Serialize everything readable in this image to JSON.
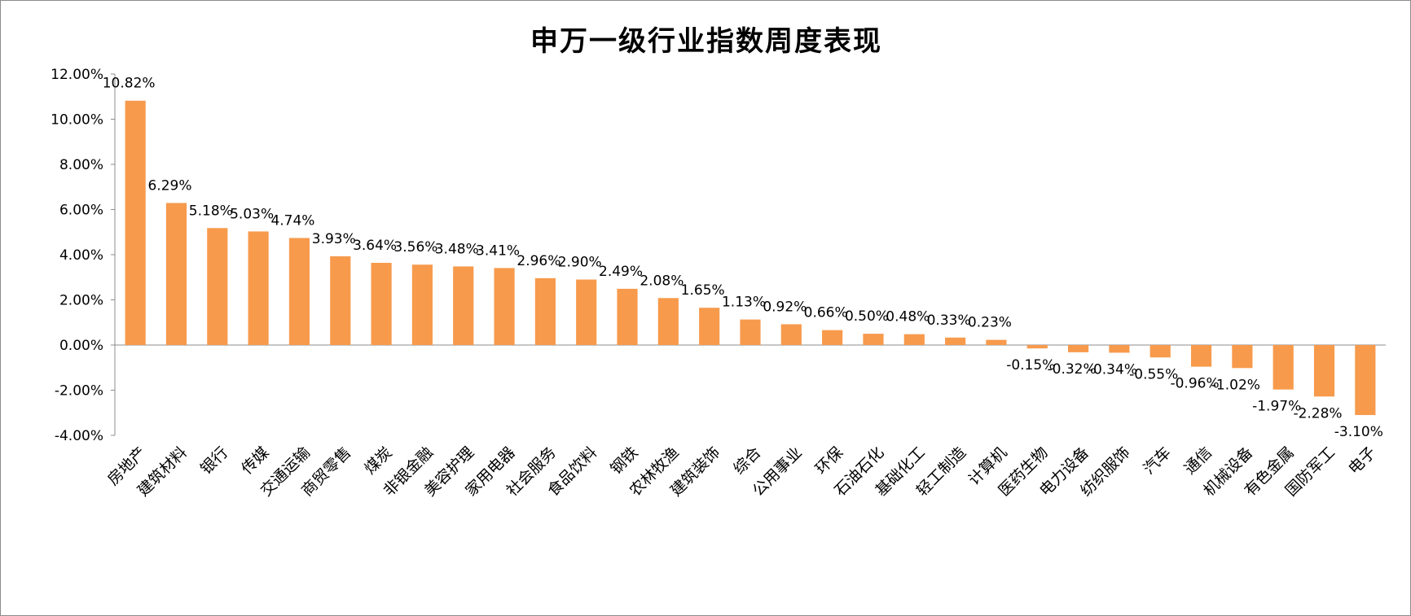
{
  "chart_data": {
    "type": "bar",
    "title": "申万一级行业指数周度表现",
    "xlabel": "",
    "ylabel": "",
    "ylim": [
      -4,
      12
    ],
    "yticks": [
      -4,
      -2,
      0,
      2,
      4,
      6,
      8,
      10,
      12
    ],
    "ytick_labels": [
      "-4.00%",
      "-2.00%",
      "0.00%",
      "2.00%",
      "4.00%",
      "6.00%",
      "8.00%",
      "10.00%",
      "12.00%"
    ],
    "grid": false,
    "legend": "none",
    "bar_color": "#F79A4C",
    "categories": [
      "房地产",
      "建筑材料",
      "银行",
      "传媒",
      "交通运输",
      "商贸零售",
      "煤炭",
      "非银金融",
      "美容护理",
      "家用电器",
      "社会服务",
      "食品饮料",
      "钢铁",
      "农林牧渔",
      "建筑装饰",
      "综合",
      "公用事业",
      "环保",
      "石油石化",
      "基础化工",
      "轻工制造",
      "计算机",
      "医药生物",
      "电力设备",
      "纺织服饰",
      "汽车",
      "通信",
      "机械设备",
      "有色金属",
      "国防军工",
      "电子"
    ],
    "values": [
      10.82,
      6.29,
      5.18,
      5.03,
      4.74,
      3.93,
      3.64,
      3.56,
      3.48,
      3.41,
      2.96,
      2.9,
      2.49,
      2.08,
      1.65,
      1.13,
      0.92,
      0.66,
      0.5,
      0.48,
      0.33,
      0.23,
      -0.15,
      -0.32,
      -0.34,
      -0.55,
      -0.96,
      -1.02,
      -1.97,
      -2.28,
      -3.1
    ],
    "data_labels": [
      "10.82%",
      "6.29%",
      "5.18%",
      "5.03%",
      "4.74%",
      "3.93%",
      "3.64%",
      "3.56%",
      "3.48%",
      "3.41%",
      "2.96%",
      "2.90%",
      "2.49%",
      "2.08%",
      "1.65%",
      "1.13%",
      "0.92%",
      "0.66%",
      "0.50%",
      "0.48%",
      "0.33%",
      "0.23%",
      "-0.15%",
      "-0.32%",
      "-0.34%",
      "-0.55%",
      "-0.96%",
      "-1.02%",
      "-1.97%",
      "-2.28%",
      "-3.10%"
    ]
  }
}
